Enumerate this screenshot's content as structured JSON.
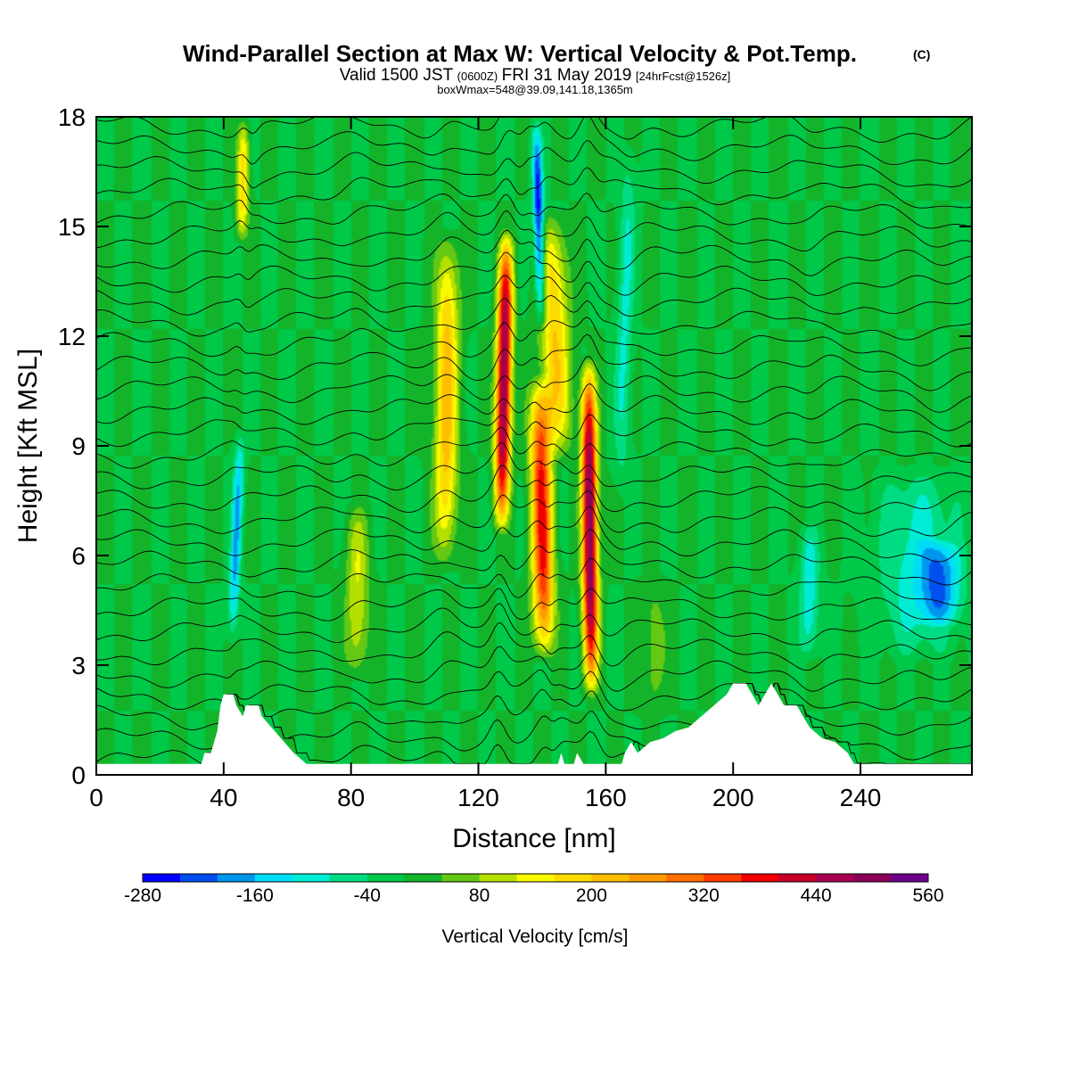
{
  "chart_data": {
    "type": "heatmap",
    "title": "Wind-Parallel Section at Max W: Vertical Velocity & Pot.Temp.",
    "title_mark": "(C)",
    "subtitle": {
      "valid_prefix": "Valid 1500 JST",
      "valid_zulu": "(0600Z)",
      "valid_date": "FRI 31 May 2019",
      "forecast": "[24hrFcst@1526z]"
    },
    "subtitle2": "boxWmax=548@39.09,141.18,1365m",
    "xlabel": "Distance [nm]",
    "ylabel": "Height [Kft MSL]",
    "xlim": [
      0,
      275
    ],
    "ylim": [
      0,
      18
    ],
    "xticks": [
      0,
      40,
      80,
      120,
      160,
      200,
      240
    ],
    "yticks": [
      0,
      3,
      6,
      9,
      12,
      15,
      18
    ],
    "background_value": 0,
    "velocity_features": [
      {
        "x": 44,
        "ybot": 3.5,
        "ytop": 9.5,
        "peak": -170,
        "width": 1.6,
        "lean": 0.45
      },
      {
        "x": 46,
        "ybot": 14.5,
        "ytop": 18,
        "peak": 180,
        "width": 1.8,
        "lean": 0.2
      },
      {
        "x": 82,
        "ybot": 2.5,
        "ytop": 7.5,
        "peak": 120,
        "width": 3.5,
        "lean": 0
      },
      {
        "x": 110,
        "ybot": 5.5,
        "ytop": 15.0,
        "peak": 220,
        "width": 3.5,
        "lean": 0.1
      },
      {
        "x": 128,
        "ybot": 6.5,
        "ytop": 15.0,
        "peak": 500,
        "width": 2.3,
        "lean": 0.2
      },
      {
        "x": 139,
        "ybot": 12.0,
        "ytop": 18,
        "peak": -260,
        "width": 1.6,
        "lean": -0.3
      },
      {
        "x": 140,
        "ybot": 3.0,
        "ytop": 11.0,
        "peak": 380,
        "width": 3.2,
        "lean": -0.2
      },
      {
        "x": 144,
        "ybot": 8.5,
        "ytop": 15.5,
        "peak": 200,
        "width": 4.5,
        "lean": -0.4
      },
      {
        "x": 155,
        "ybot": 2.0,
        "ytop": 11.5,
        "peak": 520,
        "width": 2.3,
        "lean": -0.1
      },
      {
        "x": 166,
        "ybot": 7.5,
        "ytop": 17.5,
        "peak": -90,
        "width": 2.5,
        "lean": 0.3
      },
      {
        "x": 175,
        "ybot": 1.5,
        "ytop": 5.5,
        "peak": 60,
        "width": 4,
        "lean": 0
      },
      {
        "x": 224,
        "ybot": 3.0,
        "ytop": 7.0,
        "peak": -110,
        "width": 3,
        "lean": 0
      },
      {
        "x": 258,
        "ybot": 3.0,
        "ytop": 8.5,
        "peak": -100,
        "width": 12,
        "lean": 0
      },
      {
        "x": 265,
        "ybot": 4.0,
        "ytop": 6.5,
        "peak": -150,
        "width": 6,
        "lean": 0
      }
    ],
    "terrain_kft": [
      [
        0,
        0.3
      ],
      [
        33,
        0.3
      ],
      [
        34,
        0.6
      ],
      [
        36,
        0.6
      ],
      [
        37,
        0.9
      ],
      [
        38,
        1.2
      ],
      [
        39,
        1.9
      ],
      [
        40,
        2.2
      ],
      [
        43,
        2.2
      ],
      [
        44,
        1.9
      ],
      [
        46,
        1.6
      ],
      [
        47,
        1.9
      ],
      [
        51,
        1.9
      ],
      [
        52,
        1.6
      ],
      [
        55,
        1.3
      ],
      [
        58,
        1.0
      ],
      [
        62,
        0.6
      ],
      [
        66,
        0.3
      ],
      [
        145,
        0.3
      ],
      [
        146,
        0.6
      ],
      [
        147,
        0.3
      ],
      [
        150,
        0.3
      ],
      [
        151,
        0.6
      ],
      [
        153,
        0.3
      ],
      [
        165,
        0.3
      ],
      [
        166,
        0.6
      ],
      [
        168,
        0.9
      ],
      [
        170,
        0.6
      ],
      [
        174,
        0.9
      ],
      [
        178,
        1.0
      ],
      [
        182,
        1.2
      ],
      [
        186,
        1.3
      ],
      [
        190,
        1.6
      ],
      [
        194,
        1.9
      ],
      [
        198,
        2.2
      ],
      [
        200,
        2.5
      ],
      [
        204,
        2.5
      ],
      [
        206,
        2.2
      ],
      [
        208,
        1.9
      ],
      [
        210,
        2.2
      ],
      [
        212,
        2.5
      ],
      [
        214,
        2.2
      ],
      [
        216,
        1.9
      ],
      [
        220,
        1.9
      ],
      [
        222,
        1.6
      ],
      [
        224,
        1.3
      ],
      [
        228,
        1.0
      ],
      [
        232,
        0.9
      ],
      [
        236,
        0.6
      ],
      [
        238,
        0.3
      ],
      [
        275,
        0.3
      ]
    ],
    "colorbar": {
      "levels": [
        -280,
        -240,
        -200,
        -160,
        -120,
        -80,
        -40,
        0,
        40,
        80,
        120,
        160,
        200,
        240,
        280,
        320,
        360,
        400,
        440,
        480,
        520,
        560
      ],
      "colors": [
        "#0000ff",
        "#0050f0",
        "#0096ee",
        "#00dcf8",
        "#00ecd4",
        "#00dc82",
        "#00c848",
        "#14b42a",
        "#64c814",
        "#b4e000",
        "#fafa00",
        "#fcdc00",
        "#ffbe00",
        "#ff9a00",
        "#ff6e00",
        "#ff3c00",
        "#f00000",
        "#c80028",
        "#aa0050",
        "#8c005a",
        "#6e008c"
      ],
      "tick_labels": [
        "-280",
        "-160",
        "-40",
        "80",
        "200",
        "320",
        "440",
        "560"
      ],
      "label": "Vertical Velocity [cm/s]"
    }
  }
}
